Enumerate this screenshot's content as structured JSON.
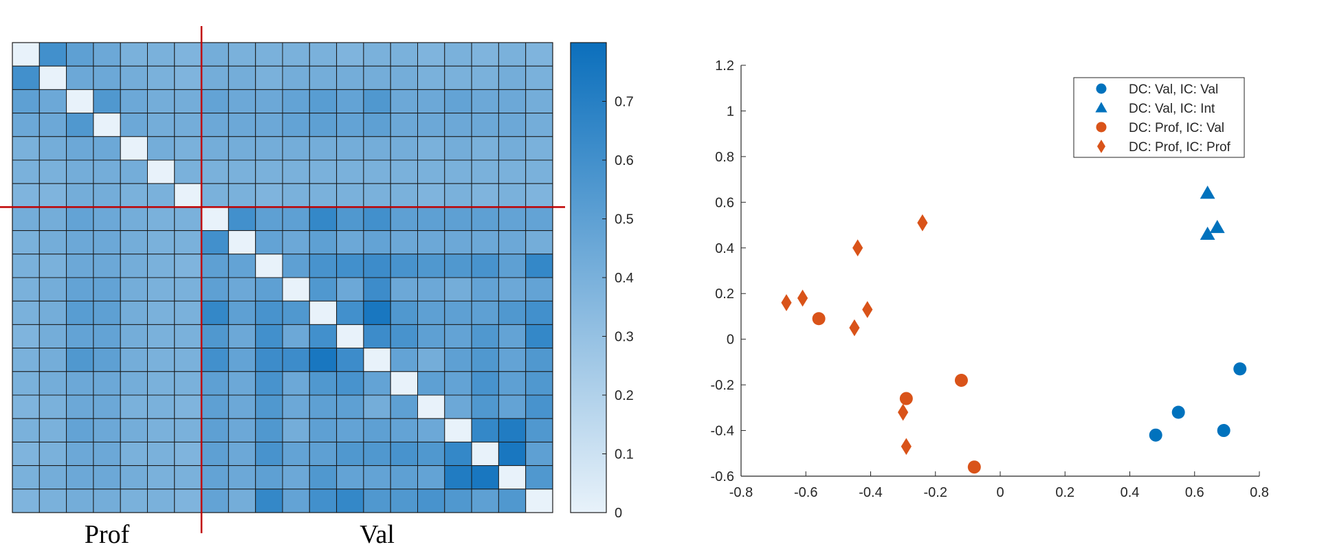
{
  "chart_data": [
    {
      "type": "heatmap",
      "rows": 20,
      "cols": 20,
      "group_labels": [
        "Prof",
        "Val"
      ],
      "group_sizes": [
        7,
        13
      ],
      "color_range": [
        0,
        0.8
      ],
      "colorbar_ticks": [
        0,
        0.1,
        0.2,
        0.3,
        0.4,
        0.5,
        0.6,
        0.7
      ],
      "colormap": [
        "#e8f2fa",
        "#0b6fbc"
      ],
      "divider_color": "#c00000",
      "values": [
        [
          0.0,
          0.6,
          0.5,
          0.45,
          0.4,
          0.4,
          0.38,
          0.42,
          0.4,
          0.4,
          0.4,
          0.4,
          0.38,
          0.4,
          0.4,
          0.38,
          0.4,
          0.38,
          0.4,
          0.38
        ],
        [
          0.6,
          0.0,
          0.45,
          0.45,
          0.42,
          0.4,
          0.38,
          0.42,
          0.42,
          0.4,
          0.42,
          0.42,
          0.42,
          0.42,
          0.42,
          0.4,
          0.4,
          0.4,
          0.42,
          0.4
        ],
        [
          0.5,
          0.45,
          0.0,
          0.55,
          0.45,
          0.42,
          0.42,
          0.48,
          0.45,
          0.45,
          0.48,
          0.52,
          0.48,
          0.55,
          0.45,
          0.45,
          0.48,
          0.45,
          0.45,
          0.42
        ],
        [
          0.45,
          0.45,
          0.55,
          0.0,
          0.45,
          0.42,
          0.42,
          0.45,
          0.45,
          0.45,
          0.48,
          0.5,
          0.48,
          0.5,
          0.45,
          0.45,
          0.45,
          0.45,
          0.45,
          0.42
        ],
        [
          0.4,
          0.42,
          0.45,
          0.45,
          0.0,
          0.42,
          0.4,
          0.42,
          0.42,
          0.42,
          0.42,
          0.42,
          0.42,
          0.42,
          0.42,
          0.4,
          0.42,
          0.4,
          0.42,
          0.4
        ],
        [
          0.4,
          0.4,
          0.42,
          0.42,
          0.42,
          0.0,
          0.4,
          0.4,
          0.4,
          0.4,
          0.4,
          0.4,
          0.4,
          0.4,
          0.4,
          0.4,
          0.4,
          0.4,
          0.4,
          0.4
        ],
        [
          0.38,
          0.38,
          0.42,
          0.42,
          0.4,
          0.4,
          0.0,
          0.4,
          0.4,
          0.38,
          0.4,
          0.4,
          0.4,
          0.4,
          0.4,
          0.38,
          0.4,
          0.38,
          0.4,
          0.38
        ],
        [
          0.42,
          0.42,
          0.48,
          0.45,
          0.42,
          0.4,
          0.4,
          0.0,
          0.6,
          0.5,
          0.5,
          0.65,
          0.55,
          0.6,
          0.5,
          0.5,
          0.5,
          0.5,
          0.48,
          0.48
        ],
        [
          0.4,
          0.42,
          0.45,
          0.45,
          0.42,
          0.4,
          0.4,
          0.6,
          0.0,
          0.48,
          0.45,
          0.5,
          0.45,
          0.48,
          0.45,
          0.45,
          0.45,
          0.45,
          0.45,
          0.42
        ],
        [
          0.4,
          0.4,
          0.45,
          0.45,
          0.42,
          0.4,
          0.38,
          0.5,
          0.48,
          0.0,
          0.5,
          0.58,
          0.6,
          0.62,
          0.58,
          0.55,
          0.55,
          0.58,
          0.5,
          0.65
        ],
        [
          0.4,
          0.42,
          0.48,
          0.48,
          0.42,
          0.4,
          0.4,
          0.5,
          0.45,
          0.5,
          0.0,
          0.55,
          0.45,
          0.62,
          0.45,
          0.45,
          0.42,
          0.48,
          0.45,
          0.48
        ],
        [
          0.4,
          0.42,
          0.52,
          0.5,
          0.42,
          0.4,
          0.4,
          0.65,
          0.5,
          0.58,
          0.55,
          0.0,
          0.6,
          0.75,
          0.55,
          0.5,
          0.5,
          0.5,
          0.55,
          0.6
        ],
        [
          0.38,
          0.42,
          0.48,
          0.48,
          0.42,
          0.4,
          0.4,
          0.55,
          0.45,
          0.6,
          0.45,
          0.6,
          0.0,
          0.62,
          0.58,
          0.5,
          0.48,
          0.55,
          0.48,
          0.65
        ],
        [
          0.4,
          0.42,
          0.55,
          0.5,
          0.42,
          0.4,
          0.4,
          0.6,
          0.48,
          0.62,
          0.62,
          0.75,
          0.62,
          0.0,
          0.48,
          0.42,
          0.5,
          0.55,
          0.48,
          0.55
        ],
        [
          0.4,
          0.42,
          0.45,
          0.45,
          0.42,
          0.4,
          0.4,
          0.5,
          0.45,
          0.58,
          0.45,
          0.55,
          0.58,
          0.48,
          0.0,
          0.5,
          0.48,
          0.58,
          0.5,
          0.55
        ],
        [
          0.38,
          0.4,
          0.45,
          0.45,
          0.4,
          0.4,
          0.38,
          0.5,
          0.45,
          0.55,
          0.45,
          0.5,
          0.5,
          0.42,
          0.5,
          0.0,
          0.45,
          0.55,
          0.48,
          0.58
        ],
        [
          0.4,
          0.4,
          0.48,
          0.45,
          0.42,
          0.4,
          0.4,
          0.5,
          0.45,
          0.55,
          0.42,
          0.5,
          0.48,
          0.5,
          0.48,
          0.45,
          0.0,
          0.65,
          0.72,
          0.55
        ],
        [
          0.38,
          0.4,
          0.45,
          0.45,
          0.4,
          0.4,
          0.38,
          0.5,
          0.45,
          0.58,
          0.48,
          0.5,
          0.55,
          0.55,
          0.58,
          0.55,
          0.65,
          0.0,
          0.75,
          0.5
        ],
        [
          0.4,
          0.42,
          0.45,
          0.45,
          0.42,
          0.4,
          0.4,
          0.48,
          0.45,
          0.5,
          0.45,
          0.55,
          0.48,
          0.48,
          0.5,
          0.48,
          0.72,
          0.75,
          0.0,
          0.55
        ],
        [
          0.38,
          0.4,
          0.42,
          0.42,
          0.4,
          0.4,
          0.38,
          0.48,
          0.42,
          0.65,
          0.48,
          0.6,
          0.65,
          0.55,
          0.55,
          0.58,
          0.55,
          0.5,
          0.55,
          0.0
        ]
      ]
    },
    {
      "type": "scatter",
      "xlim": [
        -0.8,
        0.8
      ],
      "ylim": [
        -0.6,
        1.2
      ],
      "xticks": [
        "-0.8",
        "-0.6",
        "-0.4",
        "-0.2",
        "0",
        "0.2",
        "0.4",
        "0.6",
        "0.8"
      ],
      "yticks": [
        "-0.6",
        "-0.4",
        "-0.2",
        "0",
        "0.2",
        "0.4",
        "0.6",
        "0.8",
        "1",
        "1.2"
      ],
      "legend_position": "top-right",
      "series": [
        {
          "name": "DC: Val, IC: Val",
          "marker": "circle",
          "color": "#0072bd",
          "points": [
            [
              0.48,
              -0.42
            ],
            [
              0.55,
              -0.32
            ],
            [
              0.69,
              -0.4
            ],
            [
              0.74,
              -0.13
            ]
          ]
        },
        {
          "name": "DC: Val, IC: Int",
          "marker": "triangle",
          "color": "#0072bd",
          "points": [
            [
              0.64,
              0.64
            ],
            [
              0.64,
              0.46
            ],
            [
              0.67,
              0.49
            ]
          ]
        },
        {
          "name": "DC: Prof, IC: Val",
          "marker": "circle",
          "color": "#d95319",
          "points": [
            [
              -0.56,
              0.09
            ],
            [
              -0.29,
              -0.26
            ],
            [
              -0.12,
              -0.18
            ],
            [
              -0.08,
              -0.56
            ]
          ]
        },
        {
          "name": "DC: Prof, IC: Prof",
          "marker": "diamond",
          "color": "#d95319",
          "points": [
            [
              -0.66,
              0.16
            ],
            [
              -0.61,
              0.18
            ],
            [
              -0.45,
              0.05
            ],
            [
              -0.44,
              0.4
            ],
            [
              -0.41,
              0.13
            ],
            [
              -0.3,
              -0.32
            ],
            [
              -0.29,
              -0.47
            ],
            [
              -0.24,
              0.51
            ]
          ]
        }
      ]
    }
  ]
}
